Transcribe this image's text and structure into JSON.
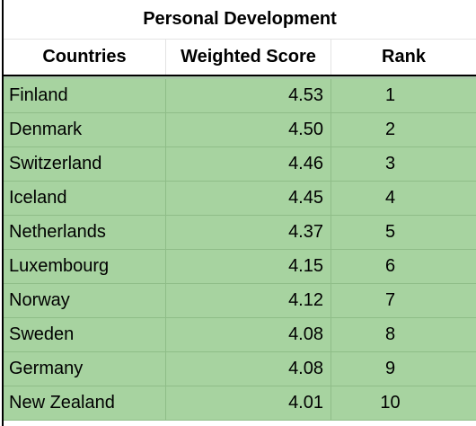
{
  "sheet": {
    "title": "Personal Development",
    "headers": {
      "country": "Countries",
      "score": "Weighted Score",
      "rank": "Rank"
    },
    "fill_color": "#a7d3a0",
    "rows": [
      {
        "country": "Finland",
        "score": "4.53",
        "rank": "1"
      },
      {
        "country": "Denmark",
        "score": "4.50",
        "rank": "2"
      },
      {
        "country": "Switzerland",
        "score": "4.46",
        "rank": "3"
      },
      {
        "country": "Iceland",
        "score": "4.45",
        "rank": "4"
      },
      {
        "country": "Netherlands",
        "score": "4.37",
        "rank": "5"
      },
      {
        "country": "Luxembourg",
        "score": "4.15",
        "rank": "6"
      },
      {
        "country": "Norway",
        "score": "4.12",
        "rank": "7"
      },
      {
        "country": "Sweden",
        "score": "4.08",
        "rank": "8"
      },
      {
        "country": "Germany",
        "score": "4.08",
        "rank": "9"
      },
      {
        "country": "New Zealand",
        "score": "4.01",
        "rank": "10"
      }
    ]
  }
}
